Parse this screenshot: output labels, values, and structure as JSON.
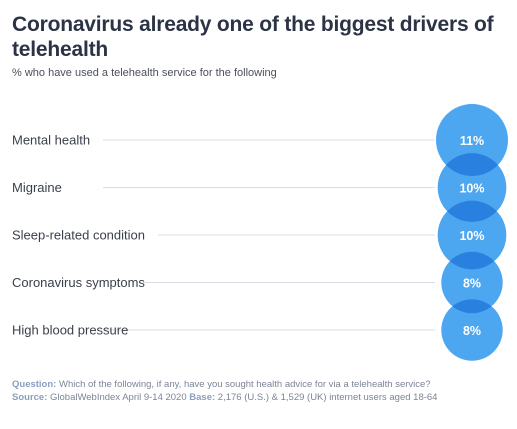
{
  "header": {
    "title": "Coronavirus already one of the biggest drivers of telehealth",
    "subtitle": "% who have used a telehealth service for the following"
  },
  "chart_data": {
    "type": "bubble",
    "categories": [
      "Mental health",
      "Migraine",
      "Sleep-related condition",
      "Coronavirus symptoms",
      "High blood pressure"
    ],
    "values": [
      11,
      10,
      10,
      8,
      8
    ],
    "value_labels": [
      "11%",
      "10%",
      "10%",
      "8%",
      "8%"
    ],
    "unit": "%",
    "colors": {
      "bubble": "#4da6f0",
      "overlap": "#2a80df",
      "leader_line": "#d8dce4",
      "label": "#3a3f4b",
      "value_text": "#ffffff"
    }
  },
  "footnote": {
    "question_label": "Question:",
    "question_text": "Which of the following, if any, have you sought health advice for via a telehealth service?",
    "source_label": "Source:",
    "source_text": "GlobalWebIndex April 9-14 2020",
    "base_label": "Base:",
    "base_text": "2,176 (U.S.) & 1,529 (UK) internet users aged 18-64"
  }
}
